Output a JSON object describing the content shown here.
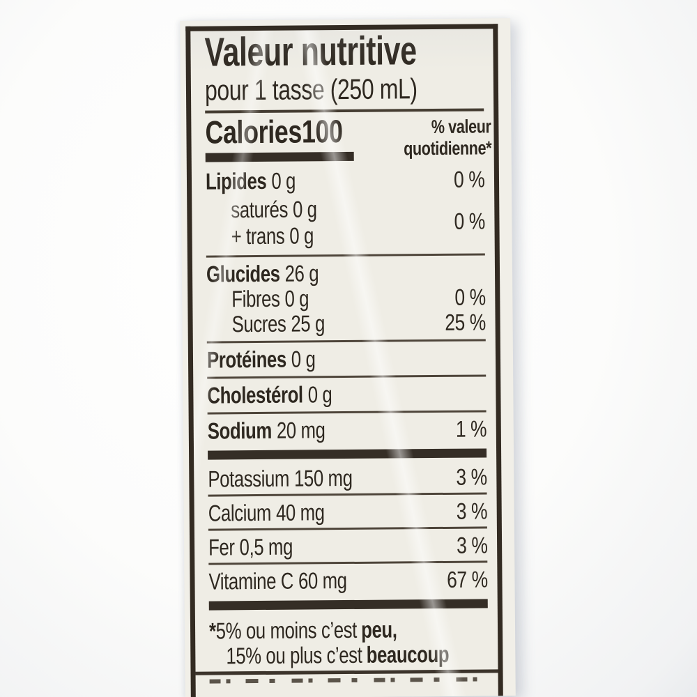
{
  "nutrition_label": {
    "title": "Valeur nutritive",
    "serving": "pour 1 tasse (250 mL)",
    "calories_label": "Calories",
    "calories_value": "100",
    "dv_header_line1": "% valeur",
    "dv_header_line2": "quotidienne*",
    "rows": {
      "fat": {
        "name": "Lipides",
        "amount": "0 g",
        "percent": "0 %"
      },
      "saturated": {
        "name": "saturés",
        "amount": "0 g"
      },
      "trans": {
        "name": "+ trans",
        "amount": "0 g"
      },
      "saturated_trans_percent": "0 %",
      "carbohydrate": {
        "name": "Glucides",
        "amount": "26 g"
      },
      "fibre": {
        "name": "Fibres",
        "amount": "0 g",
        "percent": "0 %"
      },
      "sugars": {
        "name": "Sucres",
        "amount": "25 g",
        "percent": "25 %"
      },
      "protein": {
        "name": "Protéines",
        "amount": "0 g"
      },
      "cholesterol": {
        "name": "Cholestérol",
        "amount": "0 g"
      },
      "sodium": {
        "name": "Sodium",
        "amount": "20 mg",
        "percent": "1 %"
      },
      "potassium": {
        "name": "Potassium",
        "amount": "150 mg",
        "percent": "3 %"
      },
      "calcium": {
        "name": "Calcium",
        "amount": "40 mg",
        "percent": "3 %"
      },
      "iron": {
        "name": "Fer",
        "amount": "0,5 mg",
        "percent": "3 %"
      },
      "vitamin_c": {
        "name": "Vitamine C",
        "amount": "60 mg",
        "percent": "67 %"
      }
    },
    "footnote": {
      "marker": "*",
      "line1_text": "5% ou moins c’est",
      "line1_bold": "peu,",
      "line2_text": "15% ou plus c’est",
      "line2_bold": "beaucoup"
    },
    "colors": {
      "paper": "#efede5",
      "ink": "#2e2820",
      "rule": "#4e453a",
      "thick_rule": "#352e26",
      "background": "#fcfcfb"
    }
  }
}
